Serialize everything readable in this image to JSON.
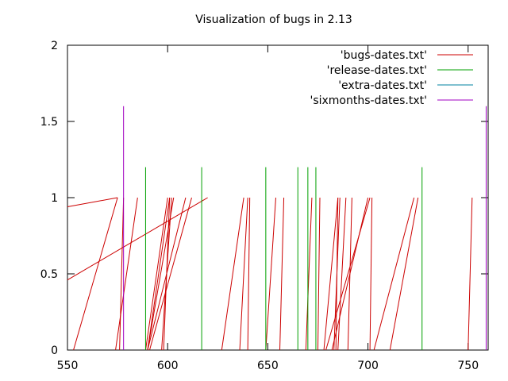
{
  "chart_data": {
    "type": "line",
    "title": "Visualization of bugs in 2.13",
    "xlabel": "",
    "ylabel": "",
    "xlim": [
      550,
      760
    ],
    "ylim": [
      0,
      2
    ],
    "xticks": [
      550,
      600,
      650,
      700,
      750
    ],
    "yticks": [
      0,
      0.5,
      1,
      1.5,
      2
    ],
    "xtick_labels": [
      "550",
      "600",
      "650",
      "700",
      "750"
    ],
    "ytick_labels": [
      "0",
      "0.5",
      "1",
      "1.5",
      "2"
    ],
    "grid": false,
    "legend_position": "top-right",
    "series": [
      {
        "name": "'bugs-dates.txt'",
        "color": "#cc0000",
        "segments": [
          [
            [
              550,
              0.94
            ],
            [
              575,
              1.0
            ]
          ],
          [
            [
              575,
              1.0
            ],
            [
              553,
              0.0
            ]
          ],
          [
            [
              550,
              0.46
            ],
            [
              620,
              1.0
            ]
          ],
          [
            [
              585,
              1.0
            ],
            [
              574,
              0.0
            ]
          ],
          [
            [
              578,
              1.0
            ],
            [
              576,
              0.0
            ]
          ],
          [
            [
              603,
              1.0
            ],
            [
              590,
              0.0
            ]
          ],
          [
            [
              601,
              1.0
            ],
            [
              590,
              0.0
            ]
          ],
          [
            [
              600,
              1.0
            ],
            [
              589,
              0.0
            ]
          ],
          [
            [
              612,
              1.0
            ],
            [
              591,
              0.0
            ]
          ],
          [
            [
              609,
              1.0
            ],
            [
              590,
              0.0
            ]
          ],
          [
            [
              602,
              1.0
            ],
            [
              597,
              0.0
            ]
          ],
          [
            [
              601,
              1.0
            ],
            [
              598,
              0.0
            ]
          ],
          [
            [
              638,
              1.0
            ],
            [
              627,
              0.0
            ]
          ],
          [
            [
              640,
              1.0
            ],
            [
              636,
              0.0
            ]
          ],
          [
            [
              641,
              1.0
            ],
            [
              640,
              0.0
            ]
          ],
          [
            [
              654,
              1.0
            ],
            [
              649,
              0.0
            ]
          ],
          [
            [
              658,
              1.0
            ],
            [
              656,
              0.0
            ]
          ],
          [
            [
              672,
              1.0
            ],
            [
              669,
              0.0
            ]
          ],
          [
            [
              676,
              1.0
            ],
            [
              675,
              0.0
            ]
          ],
          [
            [
              685,
              1.0
            ],
            [
              678,
              0.0
            ]
          ],
          [
            [
              686,
              1.0
            ],
            [
              683,
              0.0
            ]
          ],
          [
            [
              685,
              1.0
            ],
            [
              684,
              0.0
            ]
          ],
          [
            [
              689,
              1.0
            ],
            [
              685,
              0.0
            ]
          ],
          [
            [
              692,
              1.0
            ],
            [
              690,
              0.0
            ]
          ],
          [
            [
              700,
              1.0
            ],
            [
              682,
              0.0
            ]
          ],
          [
            [
              701,
              1.0
            ],
            [
              679,
              0.0
            ]
          ],
          [
            [
              702,
              1.0
            ],
            [
              701,
              0.0
            ]
          ],
          [
            [
              723,
              1.0
            ],
            [
              703,
              0.0
            ]
          ],
          [
            [
              725,
              1.0
            ],
            [
              711,
              0.0
            ]
          ],
          [
            [
              752,
              1.0
            ],
            [
              750,
              0.0
            ]
          ]
        ]
      },
      {
        "name": "'release-dates.txt'",
        "color": "#00a000",
        "impulses": [
          {
            "x": 589,
            "y": 1.2
          },
          {
            "x": 617,
            "y": 1.2
          },
          {
            "x": 649,
            "y": 1.2
          },
          {
            "x": 665,
            "y": 1.2
          },
          {
            "x": 670,
            "y": 1.2
          },
          {
            "x": 674,
            "y": 1.2
          },
          {
            "x": 727,
            "y": 1.2
          }
        ]
      },
      {
        "name": "'extra-dates.txt'",
        "color": "#0080a0",
        "impulses": []
      },
      {
        "name": "'sixmonths-dates.txt'",
        "color": "#a000c0",
        "impulses": [
          {
            "x": 578,
            "y": 1.6
          },
          {
            "x": 759,
            "y": 1.6
          }
        ]
      }
    ]
  }
}
